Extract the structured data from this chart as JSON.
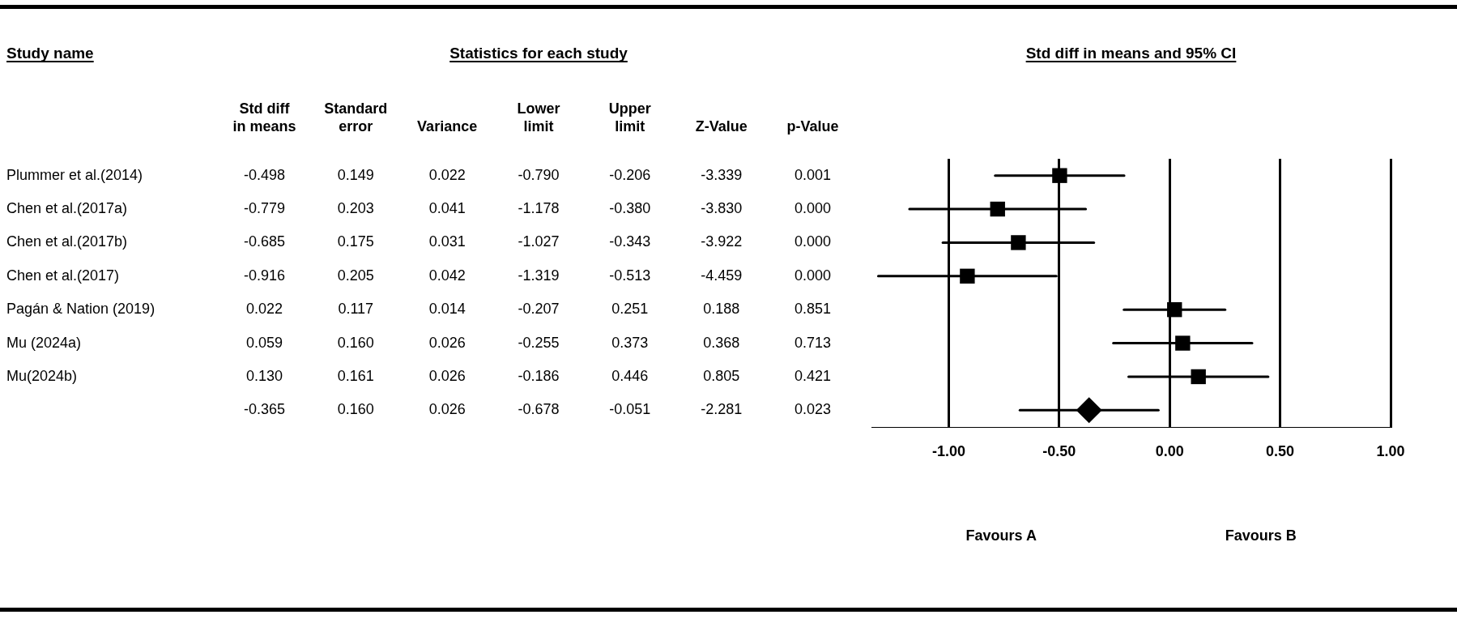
{
  "chart_data": [
    {
      "type": "heatmap",
      "title": "Statistics for each study",
      "ylabel": "Study name",
      "categories": [
        "Std diff in means",
        "Standard error",
        "Variance",
        "Lower limit",
        "Upper limit",
        "Z-Value",
        "p-Value"
      ],
      "y_categories": [
        "Plummer et al.(2014)",
        "Chen et al.(2017a)",
        "Chen et al.(2017b)",
        "Chen et al.(2017)",
        "Pagán & Nation (2019)",
        "Mu (2024a)",
        "Mu(2024b)",
        null
      ],
      "cells": [
        [
          -0.498,
          0.149,
          0.022,
          -0.79,
          -0.206,
          -3.339,
          0.001
        ],
        [
          -0.779,
          0.203,
          0.041,
          -1.178,
          -0.38,
          -3.83,
          0.0
        ],
        [
          -0.685,
          0.175,
          0.031,
          -1.027,
          -0.343,
          -3.922,
          0.0
        ],
        [
          -0.916,
          0.205,
          0.042,
          -1.319,
          -0.513,
          -4.459,
          0.0
        ],
        [
          0.022,
          0.117,
          0.014,
          -0.207,
          0.251,
          0.188,
          0.851
        ],
        [
          0.059,
          0.16,
          0.026,
          -0.255,
          0.373,
          0.368,
          0.713
        ],
        [
          0.13,
          0.161,
          0.026,
          -0.186,
          0.446,
          0.805,
          0.421
        ],
        [
          -0.365,
          0.16,
          0.026,
          -0.678,
          -0.051,
          -2.281,
          0.023
        ]
      ],
      "cell_labels": [
        [
          "-0.498",
          "0.149",
          "0.022",
          "-0.790",
          "-0.206",
          "-3.339",
          "0.001"
        ],
        [
          "-0.779",
          "0.203",
          "0.041",
          "-1.178",
          "-0.380",
          "-3.830",
          "0.000"
        ],
        [
          "-0.685",
          "0.175",
          "0.031",
          "-1.027",
          "-0.343",
          "-3.922",
          "0.000"
        ],
        [
          "-0.916",
          "0.205",
          "0.042",
          "-1.319",
          "-0.513",
          "-4.459",
          "0.000"
        ],
        [
          "0.022",
          "0.117",
          "0.014",
          "-0.207",
          "0.251",
          "0.188",
          "0.851"
        ],
        [
          "0.059",
          "0.160",
          "0.026",
          "-0.255",
          "0.373",
          "0.368",
          "0.713"
        ],
        [
          "0.130",
          "0.161",
          "0.026",
          "-0.186",
          "0.446",
          "0.805",
          "0.421"
        ],
        [
          "-0.365",
          "0.160",
          "0.026",
          "-0.678",
          "-0.051",
          "-2.281",
          "0.023"
        ]
      ]
    },
    {
      "type": "scatter",
      "title": "Std diff in means and 95% CI",
      "orientation": "horizontal",
      "categories": [
        null,
        null,
        null,
        null,
        null,
        null,
        null,
        null
      ],
      "series": [
        {
          "color": "#000000",
          "marker": "square",
          "values": [
            -0.498,
            -0.779,
            -0.685,
            -0.916,
            0.022,
            0.059,
            0.13,
            null
          ],
          "errors": [
            [
              -0.79,
              -0.206
            ],
            [
              -1.178,
              -0.38
            ],
            [
              -1.027,
              -0.343
            ],
            [
              -1.319,
              -0.513
            ],
            [
              -0.207,
              0.251
            ],
            [
              -0.255,
              0.373
            ],
            [
              -0.186,
              0.446
            ],
            null
          ]
        },
        {
          "color": "#000000",
          "marker": "diamond",
          "values": [
            null,
            null,
            null,
            null,
            null,
            null,
            null,
            -0.365
          ],
          "errors": [
            null,
            null,
            null,
            null,
            null,
            null,
            null,
            [
              -0.678,
              -0.051
            ]
          ]
        }
      ],
      "xlim": [
        -1.35,
        1
      ],
      "xticks": [
        {
          "value": -1,
          "label": "-1.00"
        },
        {
          "value": -0.5,
          "label": "-0.50"
        },
        {
          "value": 0,
          "label": "0.00"
        },
        {
          "value": 0.5,
          "label": "0.50"
        },
        {
          "value": 1,
          "label": "1.00"
        }
      ],
      "grid": "x",
      "annotations": [
        "Favours A",
        "Favours B"
      ]
    }
  ]
}
